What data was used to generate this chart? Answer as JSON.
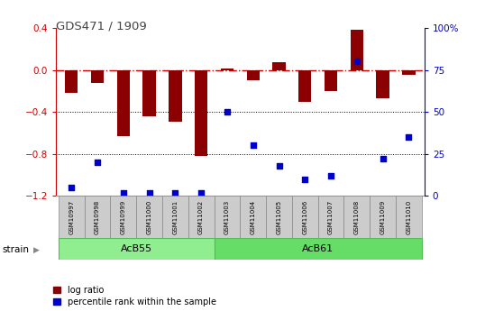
{
  "title": "GDS471 / 1909",
  "samples": [
    "GSM10997",
    "GSM10998",
    "GSM10999",
    "GSM11000",
    "GSM11001",
    "GSM11002",
    "GSM11003",
    "GSM11004",
    "GSM11005",
    "GSM11006",
    "GSM11007",
    "GSM11008",
    "GSM11009",
    "GSM11010"
  ],
  "log_ratio": [
    -0.22,
    -0.12,
    -0.63,
    -0.44,
    -0.49,
    -0.82,
    0.01,
    -0.1,
    0.07,
    -0.3,
    -0.2,
    0.38,
    -0.27,
    -0.05
  ],
  "percentile": [
    5,
    20,
    2,
    2,
    2,
    2,
    50,
    30,
    18,
    10,
    12,
    80,
    22,
    35
  ],
  "groups": [
    {
      "label": "AcB55",
      "start": 0,
      "end": 5,
      "color": "#90EE90"
    },
    {
      "label": "AcB61",
      "start": 6,
      "end": 13,
      "color": "#66DD66"
    }
  ],
  "ylim_left": [
    -1.2,
    0.4
  ],
  "ylim_right": [
    0,
    100
  ],
  "yticks_left": [
    -1.2,
    -0.8,
    -0.4,
    0.0,
    0.4
  ],
  "yticks_right": [
    0,
    25,
    50,
    75,
    100
  ],
  "bar_color": "#8B0000",
  "dot_color": "#0000CC",
  "ref_line_color": "#CC0000",
  "grid_color": "#000000",
  "strain_label": "strain",
  "legend_items": [
    "log ratio",
    "percentile rank within the sample"
  ],
  "bar_width": 0.5,
  "dot_size": 20
}
